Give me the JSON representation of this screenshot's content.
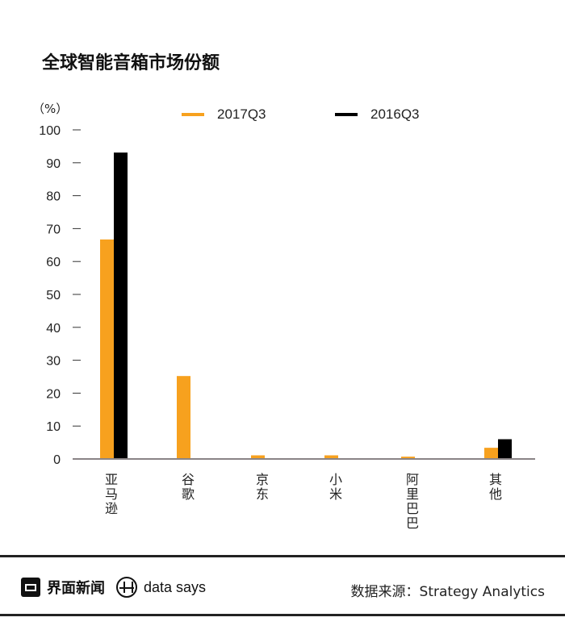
{
  "footer": {
    "brand": "界面新闻",
    "sub_brand": "data says",
    "source": "数据来源：Strategy Analytics"
  },
  "chart_data": {
    "type": "bar",
    "title": "全球智能音箱市场份额",
    "ylabel": "（%）",
    "xlabel": "",
    "ylim": [
      0,
      100
    ],
    "yticks": [
      0,
      10,
      20,
      30,
      40,
      50,
      60,
      70,
      80,
      90,
      100
    ],
    "categories": [
      "亚马逊",
      "谷歌",
      "京东",
      "小米",
      "阿里巴巴",
      "其他"
    ],
    "series": [
      {
        "name": "2017Q3",
        "color": "#F7A11E",
        "values": [
          66.7,
          25.2,
          1.1,
          1.1,
          0.7,
          3.4
        ]
      },
      {
        "name": "2016Q3",
        "color": "#000000",
        "values": [
          93.1,
          null,
          null,
          null,
          null,
          6.0
        ]
      }
    ],
    "legend_position": "top-center",
    "grid": false
  }
}
